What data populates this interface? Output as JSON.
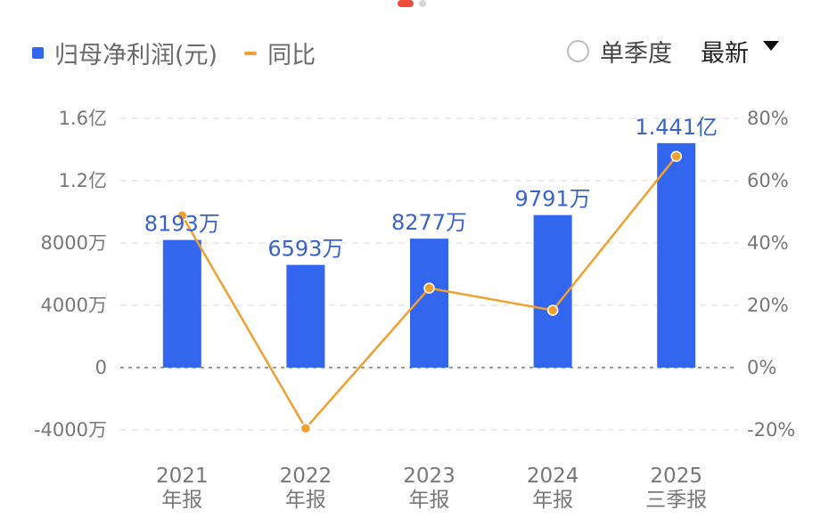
{
  "legend": {
    "bar_label": "归母净利润(元)",
    "line_label": "同比"
  },
  "controls": {
    "quarter_label": "单季度",
    "latest_label": "最新"
  },
  "colors": {
    "bar": "#3366ee",
    "line": "#f0a030",
    "data_label": "#3a63c8"
  },
  "chart_data": {
    "type": "bar",
    "categories": [
      [
        "2021",
        "年报"
      ],
      [
        "2022",
        "年报"
      ],
      [
        "2023",
        "年报"
      ],
      [
        "2024",
        "年报"
      ],
      [
        "2025",
        "三季报"
      ]
    ],
    "series": [
      {
        "name": "归母净利润(元)",
        "type": "bar",
        "axis": "left",
        "values": [
          81930000,
          65930000,
          82770000,
          97910000,
          144100000
        ],
        "labels": [
          "8193万",
          "6593万",
          "8277万",
          "9791万",
          "1.441亿"
        ]
      },
      {
        "name": "同比",
        "type": "line",
        "axis": "right",
        "values": [
          48.8,
          -19.5,
          25.5,
          18.4,
          67.8
        ]
      }
    ],
    "left_axis": {
      "ticks": [
        160000000,
        120000000,
        80000000,
        40000000,
        0,
        -40000000
      ],
      "tick_labels": [
        "1.6亿",
        "1.2亿",
        "8000万",
        "4000万",
        "0",
        "-4000万"
      ],
      "range": [
        -40000000,
        160000000
      ]
    },
    "right_axis": {
      "ticks": [
        80,
        60,
        40,
        20,
        0,
        -20
      ],
      "tick_labels": [
        "80%",
        "60%",
        "40%",
        "20%",
        "0%",
        "-20%"
      ],
      "range": [
        -20,
        80
      ]
    },
    "grid": true
  }
}
